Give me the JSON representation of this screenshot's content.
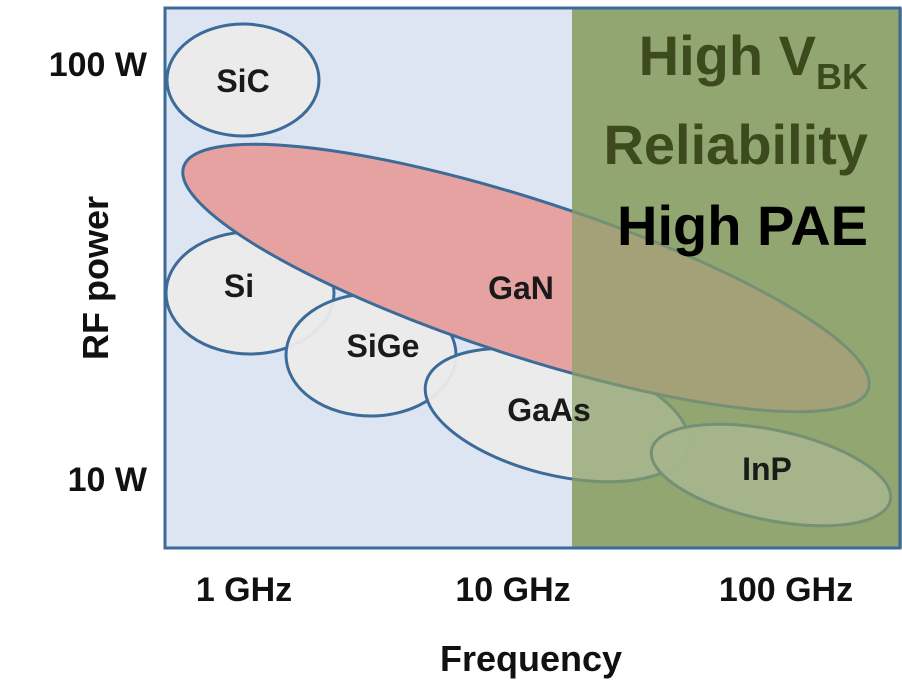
{
  "axes": {
    "y_title": "RF power",
    "x_title": "Frequency",
    "y_ticks": [
      "100 W",
      "10 W"
    ],
    "x_ticks": [
      "1 GHz",
      "10 GHz",
      "100 GHz"
    ]
  },
  "regions": {
    "high_freq_text": {
      "line1_main": "High V",
      "line1_sub": "BK",
      "line2": "Reliability",
      "line3": "High PAE"
    }
  },
  "technologies": [
    {
      "label": "SiC"
    },
    {
      "label": "GaN"
    },
    {
      "label": "Si"
    },
    {
      "label": "SiGe"
    },
    {
      "label": "GaAs"
    },
    {
      "label": "InP"
    }
  ],
  "colors": {
    "low_freq_bg": "#dce5f1",
    "high_freq_bg": "#a7b68e",
    "frame": "#3d6b99",
    "technology_fill": "#ebebeb",
    "gan_fill": "#e5a2a0",
    "text_olive": "#3d4a1d",
    "text_black": "#000000"
  }
}
